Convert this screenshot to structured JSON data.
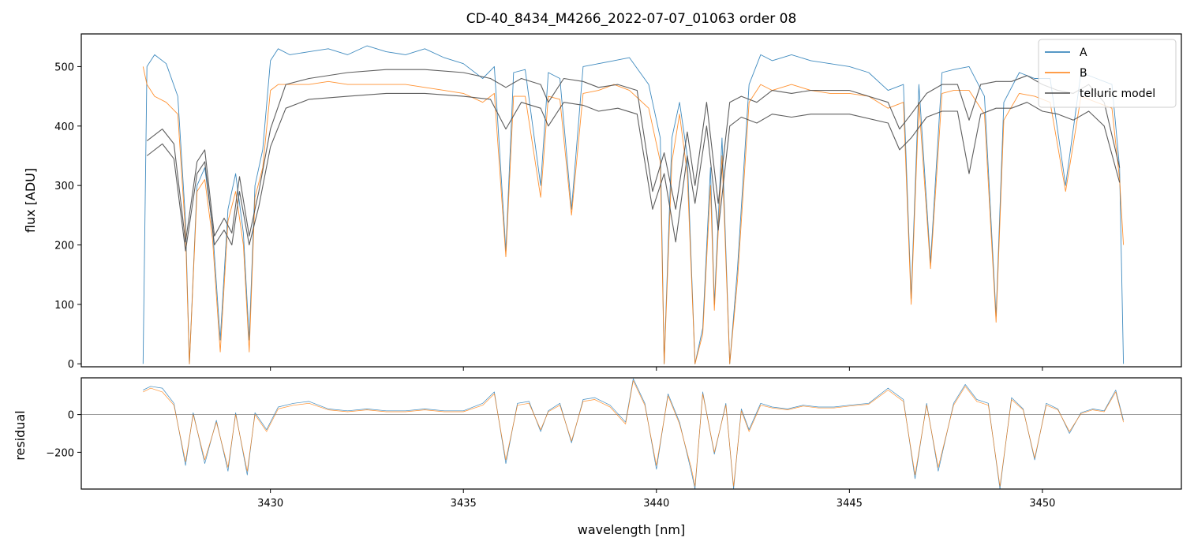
{
  "chart_data": [
    {
      "type": "line",
      "title": "CD-40_8434_M4266_2022-07-07_01063  order 08",
      "xlabel": "",
      "ylabel": "flux [ADU]",
      "xlim": [
        3425.1,
        3453.6
      ],
      "ylim": [
        -5,
        555
      ],
      "yticks": [
        0,
        100,
        200,
        300,
        400,
        500
      ],
      "xticks": [
        3430,
        3435,
        3440,
        3445,
        3450
      ],
      "grid": false,
      "legend": "top-right",
      "series": [
        {
          "name": "A",
          "color": "#1f77b4",
          "x": [
            3426.7,
            3426.8,
            3427.0,
            3427.3,
            3427.6,
            3427.8,
            3427.9,
            3428.1,
            3428.3,
            3428.5,
            3428.7,
            3428.9,
            3429.1,
            3429.3,
            3429.45,
            3429.6,
            3429.8,
            3430.0,
            3430.2,
            3430.5,
            3431.0,
            3431.5,
            3432.0,
            3432.5,
            3433.0,
            3433.5,
            3434.0,
            3434.5,
            3435.0,
            3435.5,
            3435.8,
            3436.1,
            3436.3,
            3436.6,
            3437.0,
            3437.2,
            3437.5,
            3437.8,
            3438.1,
            3438.5,
            3438.9,
            3439.3,
            3439.8,
            3440.1,
            3440.2,
            3440.4,
            3440.6,
            3440.8,
            3441.0,
            3441.2,
            3441.4,
            3441.5,
            3441.7,
            3441.9,
            3442.1,
            3442.4,
            3442.7,
            3443.0,
            3443.5,
            3444.0,
            3444.5,
            3445.0,
            3445.5,
            3446.0,
            3446.4,
            3446.6,
            3446.8,
            3447.1,
            3447.4,
            3447.7,
            3448.1,
            3448.5,
            3448.8,
            3449.0,
            3449.4,
            3449.8,
            3450.2,
            3450.6,
            3451.0,
            3451.4,
            3451.8,
            3452.0,
            3452.1
          ],
          "y": [
            0,
            500,
            520,
            505,
            450,
            240,
            0,
            300,
            330,
            230,
            40,
            260,
            320,
            220,
            40,
            300,
            360,
            510,
            530,
            520,
            525,
            530,
            520,
            535,
            525,
            520,
            530,
            515,
            505,
            480,
            500,
            190,
            490,
            495,
            300,
            490,
            480,
            260,
            500,
            505,
            510,
            515,
            470,
            380,
            0,
            380,
            440,
            350,
            0,
            60,
            330,
            100,
            380,
            0,
            160,
            470,
            520,
            510,
            520,
            510,
            505,
            500,
            490,
            460,
            470,
            110,
            470,
            170,
            490,
            495,
            500,
            450,
            80,
            440,
            490,
            480,
            480,
            300,
            490,
            480,
            470,
            330,
            0
          ]
        },
        {
          "name": "B",
          "color": "#ff7f0e",
          "x": [
            3426.7,
            3426.8,
            3427.0,
            3427.3,
            3427.6,
            3427.8,
            3427.9,
            3428.1,
            3428.3,
            3428.5,
            3428.7,
            3428.9,
            3429.1,
            3429.3,
            3429.45,
            3429.6,
            3429.8,
            3430.0,
            3430.2,
            3430.5,
            3431.0,
            3431.5,
            3432.0,
            3432.5,
            3433.0,
            3433.5,
            3434.0,
            3434.5,
            3435.0,
            3435.5,
            3435.8,
            3436.1,
            3436.3,
            3436.6,
            3437.0,
            3437.2,
            3437.5,
            3437.8,
            3438.1,
            3438.5,
            3438.9,
            3439.3,
            3439.8,
            3440.1,
            3440.2,
            3440.4,
            3440.6,
            3440.8,
            3441.0,
            3441.2,
            3441.4,
            3441.5,
            3441.7,
            3441.9,
            3442.1,
            3442.4,
            3442.7,
            3443.0,
            3443.5,
            3444.0,
            3444.5,
            3445.0,
            3445.5,
            3446.0,
            3446.4,
            3446.6,
            3446.8,
            3447.1,
            3447.4,
            3447.7,
            3448.1,
            3448.5,
            3448.8,
            3449.0,
            3449.4,
            3449.8,
            3450.2,
            3450.6,
            3451.0,
            3451.4,
            3451.8,
            3452.0,
            3452.1
          ],
          "y": [
            500,
            470,
            450,
            440,
            420,
            220,
            0,
            290,
            310,
            210,
            20,
            240,
            290,
            200,
            20,
            280,
            330,
            460,
            470,
            470,
            470,
            475,
            470,
            470,
            470,
            470,
            465,
            460,
            455,
            440,
            455,
            180,
            450,
            450,
            280,
            450,
            445,
            250,
            455,
            460,
            470,
            460,
            430,
            340,
            0,
            340,
            420,
            320,
            0,
            50,
            300,
            90,
            350,
            0,
            140,
            440,
            470,
            460,
            470,
            460,
            455,
            455,
            450,
            430,
            440,
            100,
            440,
            160,
            455,
            460,
            460,
            420,
            70,
            410,
            455,
            450,
            440,
            290,
            450,
            440,
            430,
            310,
            200
          ]
        },
        {
          "name": "telluric model",
          "color": "#4d4d4d",
          "x": [
            3426.8,
            3427.2,
            3427.5,
            3427.8,
            3428.1,
            3428.3,
            3428.55,
            3428.8,
            3429.0,
            3429.2,
            3429.45,
            3429.7,
            3430.0,
            3430.4,
            3431.0,
            3432.0,
            3433.0,
            3434.0,
            3435.0,
            3435.7,
            3436.1,
            3436.5,
            3437.0,
            3437.2,
            3437.6,
            3438.1,
            3438.5,
            3439.0,
            3439.5,
            3439.9,
            3440.2,
            3440.5,
            3440.8,
            3441.0,
            3441.3,
            3441.6,
            3441.9,
            3442.2,
            3442.6,
            3443.0,
            3443.5,
            3444.0,
            3445.0,
            3446.0,
            3446.3,
            3446.6,
            3447.0,
            3447.4,
            3447.8,
            3448.1,
            3448.4,
            3448.8,
            3449.2,
            3449.6,
            3450.0,
            3450.4,
            3450.8,
            3451.2,
            3451.6,
            3452.0
          ],
          "y": [
            375,
            395,
            370,
            205,
            340,
            360,
            215,
            245,
            220,
            315,
            215,
            290,
            395,
            470,
            480,
            490,
            495,
            495,
            490,
            480,
            465,
            480,
            470,
            440,
            480,
            475,
            465,
            470,
            460,
            290,
            355,
            260,
            390,
            300,
            440,
            270,
            440,
            450,
            440,
            460,
            455,
            460,
            460,
            440,
            395,
            420,
            455,
            470,
            470,
            410,
            470,
            475,
            475,
            485,
            470,
            460,
            455,
            470,
            440,
            330
          ]
        },
        {
          "name": "telluric model",
          "color": "#4d4d4d",
          "x": [
            3426.8,
            3427.2,
            3427.5,
            3427.8,
            3428.1,
            3428.3,
            3428.55,
            3428.8,
            3429.0,
            3429.2,
            3429.45,
            3429.7,
            3430.0,
            3430.4,
            3431.0,
            3432.0,
            3433.0,
            3434.0,
            3435.0,
            3435.7,
            3436.1,
            3436.5,
            3437.0,
            3437.2,
            3437.6,
            3438.1,
            3438.5,
            3439.0,
            3439.5,
            3439.9,
            3440.2,
            3440.5,
            3440.8,
            3441.0,
            3441.3,
            3441.6,
            3441.9,
            3442.2,
            3442.6,
            3443.0,
            3443.5,
            3444.0,
            3445.0,
            3446.0,
            3446.3,
            3446.6,
            3447.0,
            3447.4,
            3447.8,
            3448.1,
            3448.4,
            3448.8,
            3449.2,
            3449.6,
            3450.0,
            3450.4,
            3450.8,
            3451.2,
            3451.6,
            3452.0
          ],
          "y": [
            350,
            370,
            345,
            190,
            320,
            340,
            200,
            225,
            200,
            290,
            200,
            265,
            365,
            430,
            445,
            450,
            455,
            455,
            450,
            445,
            395,
            440,
            430,
            400,
            440,
            435,
            425,
            430,
            420,
            260,
            320,
            205,
            350,
            270,
            400,
            225,
            400,
            415,
            405,
            420,
            415,
            420,
            420,
            405,
            360,
            380,
            415,
            425,
            425,
            320,
            420,
            430,
            430,
            440,
            425,
            420,
            410,
            425,
            400,
            305
          ]
        }
      ]
    },
    {
      "type": "line",
      "title": "",
      "xlabel": "wavelength [nm]",
      "ylabel": "residual",
      "xlim": [
        3425.1,
        3453.6
      ],
      "ylim": [
        -395,
        195
      ],
      "yticks": [
        -200,
        0
      ],
      "xticks": [
        3430,
        3435,
        3440,
        3445,
        3450
      ],
      "reference_line": 0,
      "grid": false,
      "series": [
        {
          "color": "#1f77b4",
          "x": [
            3426.7,
            3426.9,
            3427.2,
            3427.5,
            3427.8,
            3428.0,
            3428.3,
            3428.6,
            3428.9,
            3429.1,
            3429.4,
            3429.6,
            3429.9,
            3430.2,
            3430.6,
            3431.0,
            3431.5,
            3432.0,
            3432.5,
            3433.0,
            3433.5,
            3434.0,
            3434.5,
            3435.0,
            3435.5,
            3435.8,
            3436.1,
            3436.4,
            3436.7,
            3437.0,
            3437.2,
            3437.5,
            3437.8,
            3438.1,
            3438.4,
            3438.8,
            3439.2,
            3439.4,
            3439.7,
            3440.0,
            3440.3,
            3440.6,
            3440.9,
            3441.0,
            3441.2,
            3441.5,
            3441.8,
            3442.0,
            3442.2,
            3442.4,
            3442.7,
            3443.0,
            3443.4,
            3443.8,
            3444.2,
            3444.6,
            3445.0,
            3445.5,
            3446.0,
            3446.4,
            3446.7,
            3447.0,
            3447.3,
            3447.7,
            3448.0,
            3448.3,
            3448.6,
            3448.9,
            3449.2,
            3449.5,
            3449.8,
            3450.1,
            3450.4,
            3450.7,
            3451.0,
            3451.3,
            3451.6,
            3451.9,
            3452.1
          ],
          "y": [
            130,
            150,
            140,
            60,
            -270,
            10,
            -260,
            -30,
            -300,
            10,
            -320,
            10,
            -80,
            40,
            60,
            70,
            30,
            20,
            30,
            20,
            20,
            30,
            20,
            20,
            60,
            120,
            -260,
            60,
            70,
            -90,
            20,
            60,
            -150,
            80,
            90,
            50,
            -40,
            190,
            60,
            -290,
            110,
            -40,
            -300,
            -395,
            120,
            -210,
            60,
            -395,
            30,
            -80,
            60,
            40,
            30,
            50,
            40,
            40,
            50,
            60,
            140,
            80,
            -340,
            60,
            -300,
            60,
            160,
            80,
            60,
            -395,
            90,
            30,
            -240,
            60,
            30,
            -100,
            10,
            30,
            20,
            130,
            -30
          ]
        },
        {
          "color": "#ff7f0e",
          "x": [
            3426.7,
            3426.9,
            3427.2,
            3427.5,
            3427.8,
            3428.0,
            3428.3,
            3428.6,
            3428.9,
            3429.1,
            3429.4,
            3429.6,
            3429.9,
            3430.2,
            3430.6,
            3431.0,
            3431.5,
            3432.0,
            3432.5,
            3433.0,
            3433.5,
            3434.0,
            3434.5,
            3435.0,
            3435.5,
            3435.8,
            3436.1,
            3436.4,
            3436.7,
            3437.0,
            3437.2,
            3437.5,
            3437.8,
            3438.1,
            3438.4,
            3438.8,
            3439.2,
            3439.4,
            3439.7,
            3440.0,
            3440.3,
            3440.6,
            3440.9,
            3441.0,
            3441.2,
            3441.5,
            3441.8,
            3442.0,
            3442.2,
            3442.4,
            3442.7,
            3443.0,
            3443.4,
            3443.8,
            3444.2,
            3444.6,
            3445.0,
            3445.5,
            3446.0,
            3446.4,
            3446.7,
            3447.0,
            3447.3,
            3447.7,
            3448.0,
            3448.3,
            3448.6,
            3448.9,
            3449.2,
            3449.5,
            3449.8,
            3450.1,
            3450.4,
            3450.7,
            3451.0,
            3451.3,
            3451.6,
            3451.9,
            3452.1
          ],
          "y": [
            120,
            140,
            120,
            50,
            -250,
            0,
            -240,
            -40,
            -280,
            0,
            -300,
            0,
            -90,
            30,
            50,
            60,
            25,
            15,
            25,
            15,
            15,
            25,
            15,
            15,
            50,
            110,
            -240,
            50,
            60,
            -80,
            15,
            50,
            -140,
            70,
            80,
            40,
            -50,
            180,
            50,
            -270,
            100,
            -50,
            -280,
            -380,
            110,
            -200,
            50,
            -380,
            20,
            -90,
            50,
            35,
            25,
            45,
            35,
            35,
            45,
            55,
            130,
            70,
            -320,
            50,
            -280,
            50,
            150,
            70,
            50,
            -380,
            80,
            25,
            -230,
            50,
            25,
            -90,
            5,
            25,
            15,
            120,
            -40
          ]
        }
      ]
    }
  ],
  "legend": {
    "items": [
      {
        "label": "A",
        "color": "#1f77b4"
      },
      {
        "label": "B",
        "color": "#ff7f0e"
      },
      {
        "label": "telluric model",
        "color": "#4d4d4d"
      }
    ]
  }
}
